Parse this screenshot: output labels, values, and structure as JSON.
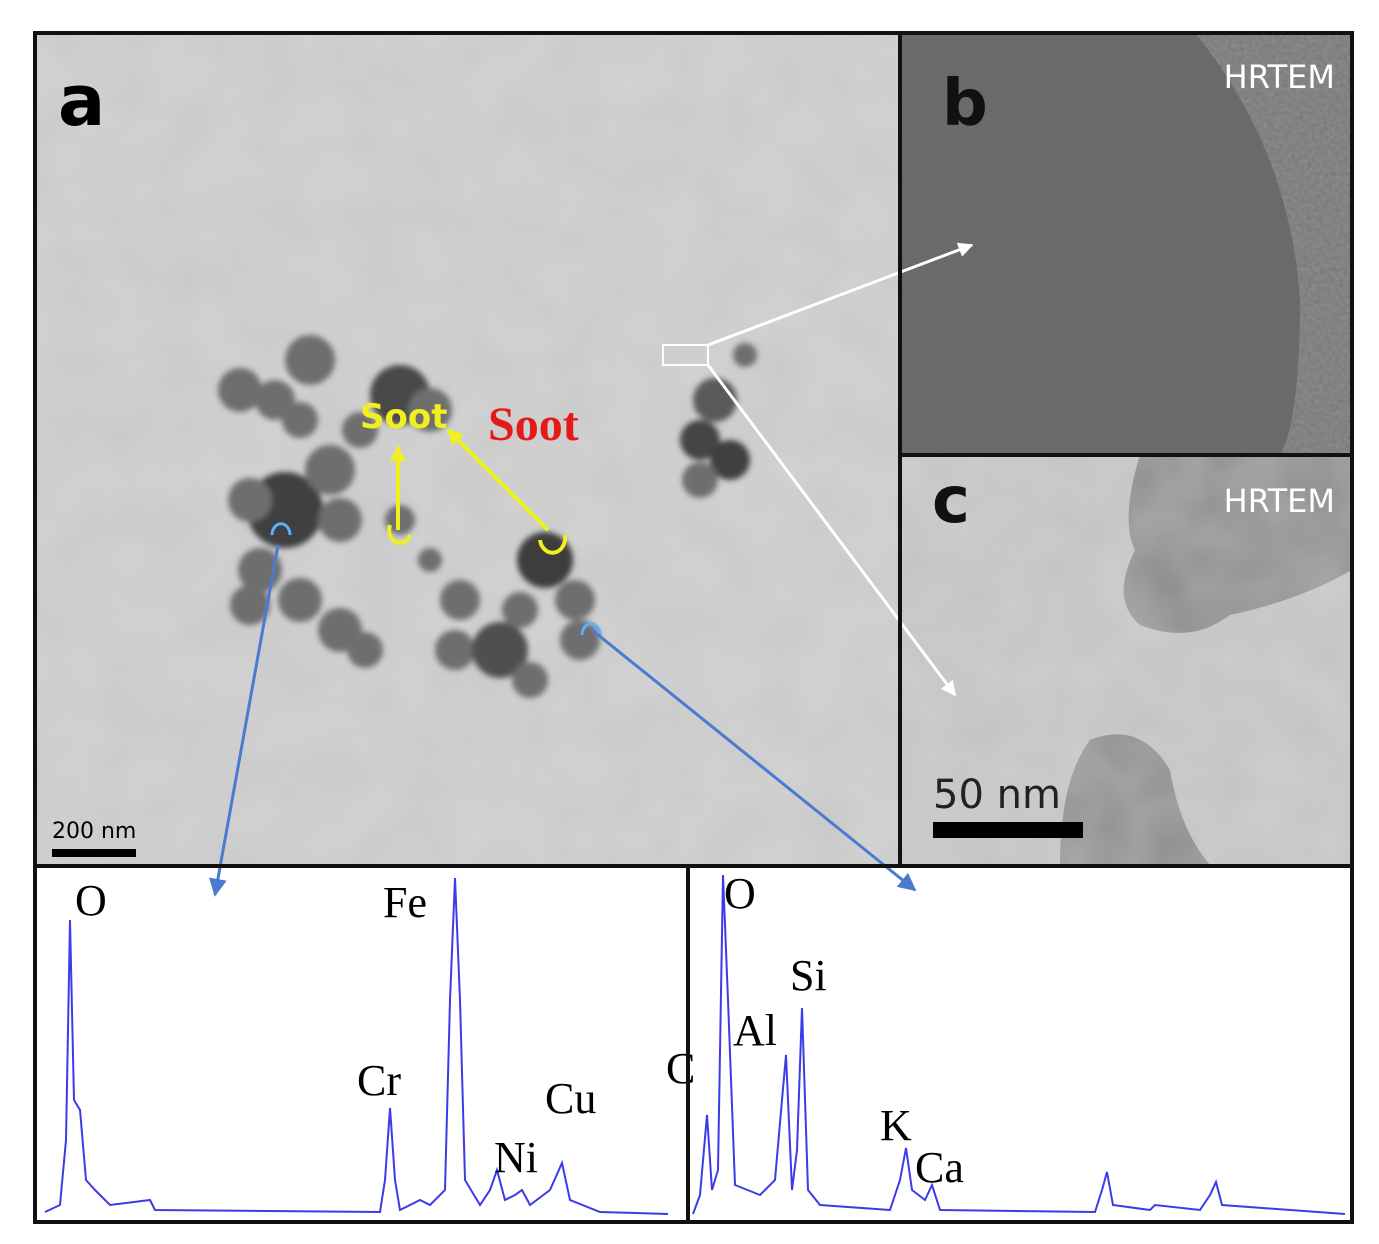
{
  "panels": {
    "a": {
      "label": "a",
      "annotations": [
        "Soot",
        "Soot"
      ],
      "scale_bar": "200 nm"
    },
    "b": {
      "label": "b",
      "technique": "HRTEM"
    },
    "c": {
      "label": "c",
      "technique": "HRTEM",
      "scale_bar": "50 nm"
    }
  },
  "spectra": [
    {
      "peaks": [
        "O",
        "Fe",
        "Cr",
        "Ni",
        "Cu"
      ]
    },
    {
      "peaks": [
        "O",
        "Si",
        "Al",
        "C",
        "K",
        "Ca"
      ]
    }
  ]
}
